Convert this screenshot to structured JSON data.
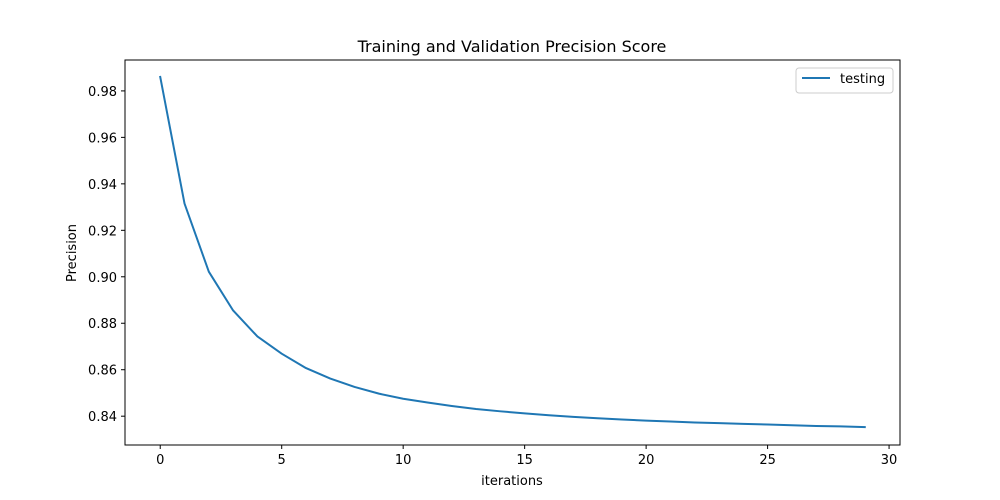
{
  "chart_data": {
    "type": "line",
    "title": "Training and Validation Precision Score",
    "xlabel": "iterations",
    "ylabel": "Precision",
    "xlim": [
      -1.45,
      30.45
    ],
    "ylim": [
      0.8276,
      0.9933
    ],
    "x_ticks": [
      0,
      5,
      10,
      15,
      20,
      25,
      30
    ],
    "y_ticks": [
      0.84,
      0.86,
      0.88,
      0.9,
      0.92,
      0.94,
      0.96,
      0.98
    ],
    "y_tick_labels": [
      "0.84",
      "0.86",
      "0.88",
      "0.90",
      "0.92",
      "0.94",
      "0.96",
      "0.98"
    ],
    "grid": false,
    "legend_position": "top-right",
    "series": [
      {
        "name": "testing",
        "color": "#1f77b4",
        "x": [
          0,
          1,
          2,
          3,
          4,
          5,
          6,
          7,
          8,
          9,
          10,
          11,
          12,
          13,
          14,
          15,
          16,
          17,
          18,
          19,
          20,
          21,
          22,
          23,
          24,
          25,
          26,
          27,
          28,
          29
        ],
        "y": [
          0.986,
          0.9315,
          0.9022,
          0.8855,
          0.8743,
          0.8669,
          0.8607,
          0.8562,
          0.8526,
          0.8497,
          0.8475,
          0.8459,
          0.8444,
          0.8431,
          0.8421,
          0.8412,
          0.8404,
          0.8397,
          0.8391,
          0.8386,
          0.8381,
          0.8377,
          0.8373,
          0.837,
          0.8367,
          0.8364,
          0.8361,
          0.8358,
          0.8356,
          0.8353
        ]
      }
    ]
  }
}
